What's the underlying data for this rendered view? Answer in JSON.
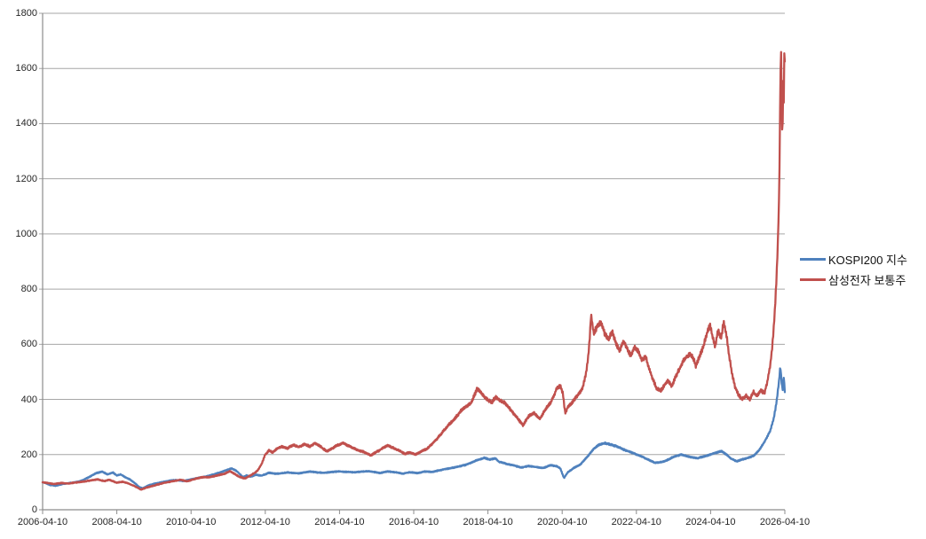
{
  "chart_data": {
    "type": "line",
    "title": "",
    "background": "#ffffff",
    "gridlines": "horizontal",
    "colors": {
      "gridline": "#a6a6a6",
      "axis": "#8c8c8c",
      "tick_label": "#262626",
      "series_blue": "#4F81BD",
      "series_red": "#C0504D"
    },
    "x_axis": {
      "tick_labels": [
        "2006-04-10",
        "2008-04-10",
        "2010-04-10",
        "2012-04-10",
        "2014-04-10",
        "2016-04-10",
        "2018-04-10",
        "2020-04-10",
        "2022-04-10",
        "2024-04-10",
        "2026-04-10"
      ],
      "range_years_from_start": [
        0,
        20
      ]
    },
    "y_axis": {
      "tick_values": [
        0,
        200,
        400,
        600,
        800,
        1000,
        1200,
        1400,
        1600,
        1800
      ],
      "range": [
        0,
        1800
      ]
    },
    "legend": {
      "position": "middle-right"
    },
    "series": [
      {
        "name": "KOSPI200 지수",
        "color": "#4F81BD",
        "points_t_years_value": [
          [
            0,
            100
          ],
          [
            0.1,
            96
          ],
          [
            0.2,
            90
          ],
          [
            0.35,
            87
          ],
          [
            0.5,
            92
          ],
          [
            0.7,
            96
          ],
          [
            0.9,
            100
          ],
          [
            1.1,
            108
          ],
          [
            1.3,
            122
          ],
          [
            1.45,
            133
          ],
          [
            1.6,
            138
          ],
          [
            1.75,
            128
          ],
          [
            1.9,
            135
          ],
          [
            2,
            124
          ],
          [
            2.1,
            128
          ],
          [
            2.2,
            120
          ],
          [
            2.35,
            110
          ],
          [
            2.5,
            95
          ],
          [
            2.6,
            82
          ],
          [
            2.7,
            78
          ],
          [
            2.85,
            88
          ],
          [
            3,
            94
          ],
          [
            3.2,
            100
          ],
          [
            3.4,
            105
          ],
          [
            3.6,
            108
          ],
          [
            3.8,
            104
          ],
          [
            4,
            110
          ],
          [
            4.2,
            116
          ],
          [
            4.4,
            120
          ],
          [
            4.6,
            128
          ],
          [
            4.8,
            136
          ],
          [
            5,
            146
          ],
          [
            5.1,
            150
          ],
          [
            5.25,
            138
          ],
          [
            5.4,
            118
          ],
          [
            5.5,
            124
          ],
          [
            5.6,
            120
          ],
          [
            5.75,
            127
          ],
          [
            5.9,
            124
          ],
          [
            6.1,
            134
          ],
          [
            6.3,
            130
          ],
          [
            6.6,
            135
          ],
          [
            6.9,
            132
          ],
          [
            7.2,
            138
          ],
          [
            7.6,
            134
          ],
          [
            8,
            139
          ],
          [
            8.4,
            136
          ],
          [
            8.8,
            140
          ],
          [
            9.1,
            133
          ],
          [
            9.3,
            139
          ],
          [
            9.5,
            136
          ],
          [
            9.7,
            131
          ],
          [
            9.9,
            136
          ],
          [
            10.1,
            133
          ],
          [
            10.3,
            139
          ],
          [
            10.5,
            137
          ],
          [
            10.8,
            146
          ],
          [
            11.1,
            153
          ],
          [
            11.4,
            163
          ],
          [
            11.7,
            180
          ],
          [
            11.9,
            188
          ],
          [
            12.05,
            182
          ],
          [
            12.2,
            186
          ],
          [
            12.3,
            174
          ],
          [
            12.5,
            166
          ],
          [
            12.7,
            161
          ],
          [
            12.9,
            153
          ],
          [
            13.1,
            159
          ],
          [
            13.3,
            155
          ],
          [
            13.5,
            152
          ],
          [
            13.7,
            162
          ],
          [
            13.85,
            158
          ],
          [
            13.95,
            150
          ],
          [
            14.05,
            115
          ],
          [
            14.15,
            136
          ],
          [
            14.3,
            150
          ],
          [
            14.5,
            165
          ],
          [
            14.7,
            196
          ],
          [
            14.85,
            222
          ],
          [
            15,
            236
          ],
          [
            15.15,
            242
          ],
          [
            15.3,
            236
          ],
          [
            15.5,
            228
          ],
          [
            15.7,
            216
          ],
          [
            15.9,
            206
          ],
          [
            16.1,
            196
          ],
          [
            16.3,
            183
          ],
          [
            16.5,
            170
          ],
          [
            16.65,
            172
          ],
          [
            16.8,
            178
          ],
          [
            17,
            192
          ],
          [
            17.2,
            200
          ],
          [
            17.35,
            195
          ],
          [
            17.5,
            190
          ],
          [
            17.65,
            187
          ],
          [
            17.8,
            193
          ],
          [
            18,
            200
          ],
          [
            18.15,
            208
          ],
          [
            18.3,
            212
          ],
          [
            18.45,
            198
          ],
          [
            18.55,
            185
          ],
          [
            18.7,
            176
          ],
          [
            18.85,
            182
          ],
          [
            19,
            188
          ],
          [
            19.1,
            192
          ],
          [
            19.2,
            200
          ],
          [
            19.3,
            215
          ],
          [
            19.4,
            235
          ],
          [
            19.5,
            258
          ],
          [
            19.6,
            285
          ],
          [
            19.7,
            330
          ],
          [
            19.78,
            392
          ],
          [
            19.84,
            462
          ],
          [
            19.88,
            520
          ],
          [
            19.91,
            468
          ],
          [
            19.94,
            432
          ],
          [
            19.97,
            485
          ],
          [
            20,
            428
          ]
        ]
      },
      {
        "name": "삼성전자 보통주",
        "color": "#C0504D",
        "points_t_years_value": [
          [
            0,
            100
          ],
          [
            0.15,
            97
          ],
          [
            0.3,
            94
          ],
          [
            0.5,
            97
          ],
          [
            0.7,
            95
          ],
          [
            0.9,
            99
          ],
          [
            1.1,
            102
          ],
          [
            1.3,
            106
          ],
          [
            1.5,
            110
          ],
          [
            1.65,
            104
          ],
          [
            1.8,
            108
          ],
          [
            2,
            98
          ],
          [
            2.15,
            102
          ],
          [
            2.3,
            96
          ],
          [
            2.5,
            84
          ],
          [
            2.65,
            73
          ],
          [
            2.8,
            80
          ],
          [
            3,
            88
          ],
          [
            3.2,
            95
          ],
          [
            3.45,
            102
          ],
          [
            3.7,
            108
          ],
          [
            3.9,
            103
          ],
          [
            4.1,
            112
          ],
          [
            4.3,
            118
          ],
          [
            4.5,
            118
          ],
          [
            4.7,
            124
          ],
          [
            4.9,
            130
          ],
          [
            5.05,
            140
          ],
          [
            5.2,
            128
          ],
          [
            5.3,
            120
          ],
          [
            5.45,
            113
          ],
          [
            5.6,
            124
          ],
          [
            5.7,
            132
          ],
          [
            5.8,
            142
          ],
          [
            5.9,
            165
          ],
          [
            6,
            200
          ],
          [
            6.1,
            215
          ],
          [
            6.2,
            208
          ],
          [
            6.3,
            220
          ],
          [
            6.45,
            230
          ],
          [
            6.6,
            222
          ],
          [
            6.75,
            235
          ],
          [
            6.9,
            228
          ],
          [
            7.05,
            238
          ],
          [
            7.2,
            230
          ],
          [
            7.35,
            242
          ],
          [
            7.5,
            228
          ],
          [
            7.65,
            212
          ],
          [
            7.8,
            222
          ],
          [
            7.95,
            234
          ],
          [
            8.1,
            242
          ],
          [
            8.25,
            232
          ],
          [
            8.4,
            222
          ],
          [
            8.55,
            214
          ],
          [
            8.7,
            207
          ],
          [
            8.85,
            198
          ],
          [
            9,
            210
          ],
          [
            9.15,
            222
          ],
          [
            9.3,
            233
          ],
          [
            9.45,
            224
          ],
          [
            9.6,
            214
          ],
          [
            9.75,
            203
          ],
          [
            9.9,
            208
          ],
          [
            10.05,
            200
          ],
          [
            10.2,
            212
          ],
          [
            10.35,
            220
          ],
          [
            10.5,
            240
          ],
          [
            10.65,
            260
          ],
          [
            10.8,
            285
          ],
          [
            10.95,
            310
          ],
          [
            11.1,
            330
          ],
          [
            11.25,
            355
          ],
          [
            11.4,
            375
          ],
          [
            11.55,
            390
          ],
          [
            11.7,
            438
          ],
          [
            11.8,
            425
          ],
          [
            11.9,
            410
          ],
          [
            12,
            398
          ],
          [
            12.1,
            390
          ],
          [
            12.2,
            408
          ],
          [
            12.35,
            395
          ],
          [
            12.5,
            382
          ],
          [
            12.65,
            355
          ],
          [
            12.8,
            330
          ],
          [
            12.95,
            305
          ],
          [
            13.1,
            340
          ],
          [
            13.25,
            350
          ],
          [
            13.4,
            332
          ],
          [
            13.55,
            362
          ],
          [
            13.7,
            390
          ],
          [
            13.85,
            438
          ],
          [
            13.95,
            450
          ],
          [
            14.02,
            420
          ],
          [
            14.08,
            348
          ],
          [
            14.15,
            372
          ],
          [
            14.3,
            392
          ],
          [
            14.45,
            420
          ],
          [
            14.55,
            440
          ],
          [
            14.65,
            500
          ],
          [
            14.72,
            580
          ],
          [
            14.78,
            705
          ],
          [
            14.85,
            640
          ],
          [
            14.95,
            668
          ],
          [
            15.05,
            680
          ],
          [
            15.15,
            640
          ],
          [
            15.25,
            618
          ],
          [
            15.35,
            645
          ],
          [
            15.45,
            600
          ],
          [
            15.55,
            575
          ],
          [
            15.65,
            612
          ],
          [
            15.75,
            585
          ],
          [
            15.85,
            560
          ],
          [
            15.95,
            590
          ],
          [
            16.05,
            570
          ],
          [
            16.15,
            545
          ],
          [
            16.25,
            555
          ],
          [
            16.35,
            510
          ],
          [
            16.45,
            470
          ],
          [
            16.55,
            440
          ],
          [
            16.65,
            432
          ],
          [
            16.75,
            450
          ],
          [
            16.85,
            468
          ],
          [
            16.95,
            448
          ],
          [
            17.05,
            480
          ],
          [
            17.15,
            508
          ],
          [
            17.25,
            540
          ],
          [
            17.35,
            552
          ],
          [
            17.45,
            565
          ],
          [
            17.55,
            545
          ],
          [
            17.6,
            520
          ],
          [
            17.7,
            555
          ],
          [
            17.8,
            590
          ],
          [
            17.9,
            640
          ],
          [
            17.98,
            675
          ],
          [
            18.05,
            625
          ],
          [
            18.12,
            590
          ],
          [
            18.2,
            655
          ],
          [
            18.28,
            620
          ],
          [
            18.35,
            680
          ],
          [
            18.42,
            640
          ],
          [
            18.5,
            560
          ],
          [
            18.58,
            490
          ],
          [
            18.66,
            445
          ],
          [
            18.74,
            420
          ],
          [
            18.85,
            400
          ],
          [
            18.95,
            415
          ],
          [
            19.05,
            398
          ],
          [
            19.15,
            428
          ],
          [
            19.25,
            410
          ],
          [
            19.35,
            435
          ],
          [
            19.45,
            425
          ],
          [
            19.52,
            460
          ],
          [
            19.6,
            520
          ],
          [
            19.66,
            590
          ],
          [
            19.72,
            700
          ],
          [
            19.77,
            820
          ],
          [
            19.81,
            950
          ],
          [
            19.85,
            1150
          ],
          [
            19.875,
            1480
          ],
          [
            19.895,
            1700
          ],
          [
            19.915,
            1500
          ],
          [
            19.935,
            1310
          ],
          [
            19.955,
            1560
          ],
          [
            19.97,
            1460
          ],
          [
            19.985,
            1640
          ],
          [
            20,
            1630
          ]
        ]
      }
    ]
  }
}
